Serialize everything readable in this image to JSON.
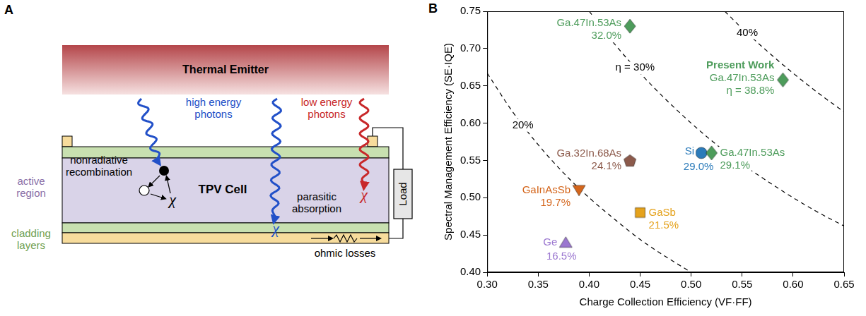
{
  "diagram": {
    "panel_label": "A",
    "emitter": "Thermal Emitter",
    "cell": "TPV Cell",
    "load": "Load",
    "high_energy_photons": "high energy photons",
    "low_energy_photons": "low energy photons",
    "nonradiative_recombination": "nonradiative recombination",
    "parasitic_absorption": "parasitic absorption",
    "ohmic_losses": "ohmic losses",
    "active_region": "active region",
    "cladding_layers": "cladding layers",
    "loss_symbol": "χ"
  },
  "chart_data": {
    "type": "scatter",
    "panel_label": "B",
    "x_label": "Charge Collection Efficiency (VF·FF)",
    "y_label": "Spectral Management Efficiency (SE·IQE)",
    "xlim": [
      0.3,
      0.65
    ],
    "xticks": [
      {
        "value": 0.3,
        "label": "0.30"
      },
      {
        "value": 0.35,
        "label": "0.35"
      },
      {
        "value": 0.4,
        "label": "0.40"
      },
      {
        "value": 0.45,
        "label": "0.45"
      },
      {
        "value": 0.5,
        "label": "0.50"
      },
      {
        "value": 0.55,
        "label": "0.55"
      },
      {
        "value": 0.6,
        "label": "0.60"
      },
      {
        "value": 0.65,
        "label": "0.65"
      }
    ],
    "ylim": [
      0.4,
      0.75
    ],
    "yticks": [
      {
        "value": 0.4,
        "label": "0.40"
      },
      {
        "value": 0.45,
        "label": "0.45"
      },
      {
        "value": 0.5,
        "label": "0.50"
      },
      {
        "value": 0.55,
        "label": "0.55"
      },
      {
        "value": 0.6,
        "label": "0.60"
      },
      {
        "value": 0.65,
        "label": "0.65"
      },
      {
        "value": 0.7,
        "label": "0.70"
      },
      {
        "value": 0.75,
        "label": "0.75"
      }
    ],
    "grid": false,
    "series": [
      {
        "name": "Ga.47In.53As",
        "color": "#4d9c5b",
        "marker": "diamond",
        "x": [
          0.44
        ],
        "values": [
          0.73
        ],
        "annotation": "32.0%"
      },
      {
        "name": "Ga.47In.53As",
        "title": "Present Work",
        "color": "#4d9c5b",
        "marker": "diamond",
        "x": [
          0.59
        ],
        "values": [
          0.658
        ],
        "annotation": "η = 38.8%"
      },
      {
        "name": "Ga.47In.53As",
        "color": "#4d9c5b",
        "marker": "diamond",
        "x": [
          0.52
        ],
        "values": [
          0.56
        ],
        "annotation": "29.1%"
      },
      {
        "name": "Si",
        "color": "#2b7bba",
        "marker": "circle",
        "x": [
          0.51
        ],
        "values": [
          0.56
        ],
        "annotation": "29.0%"
      },
      {
        "name": "Ga.32In.68As",
        "color": "#8c5a4b",
        "marker": "pentagon",
        "x": [
          0.44
        ],
        "values": [
          0.55
        ],
        "annotation": "24.1%"
      },
      {
        "name": "GaInAsSb",
        "color": "#d4661c",
        "marker": "triangle_down",
        "x": [
          0.39
        ],
        "values": [
          0.51
        ],
        "annotation": "19.7%"
      },
      {
        "name": "GaSb",
        "color": "#e5a21c",
        "marker": "square",
        "x": [
          0.45
        ],
        "values": [
          0.48
        ],
        "annotation": "21.5%"
      },
      {
        "name": "Ge",
        "color": "#9b77d0",
        "marker": "triangle",
        "x": [
          0.377
        ],
        "values": [
          0.44
        ],
        "annotation": "16.5%"
      }
    ],
    "contours": [
      {
        "label": "20%",
        "color": "#000000",
        "line_style": "dashed",
        "label_at": [
          0.335,
          0.597
        ],
        "x": [
          0.3,
          0.325,
          0.35,
          0.375,
          0.4,
          0.425,
          0.45,
          0.475,
          0.5
        ],
        "values": [
          0.667,
          0.615,
          0.571,
          0.533,
          0.5,
          0.471,
          0.444,
          0.421,
          0.4
        ]
      },
      {
        "label": "η = 30%",
        "color": "#000000",
        "line_style": "dashed",
        "label_at": [
          0.445,
          0.674
        ],
        "x": [
          0.4,
          0.425,
          0.45,
          0.475,
          0.5,
          0.525,
          0.55,
          0.575,
          0.6,
          0.625,
          0.65
        ],
        "values": [
          0.75,
          0.706,
          0.667,
          0.632,
          0.6,
          0.571,
          0.545,
          0.522,
          0.5,
          0.48,
          0.462
        ]
      },
      {
        "label": "40%",
        "color": "#000000",
        "line_style": "dashed",
        "label_at": [
          0.555,
          0.721
        ],
        "x": [
          0.533,
          0.55,
          0.575,
          0.6,
          0.625,
          0.65
        ],
        "values": [
          0.75,
          0.727,
          0.696,
          0.667,
          0.64,
          0.615
        ]
      }
    ]
  }
}
